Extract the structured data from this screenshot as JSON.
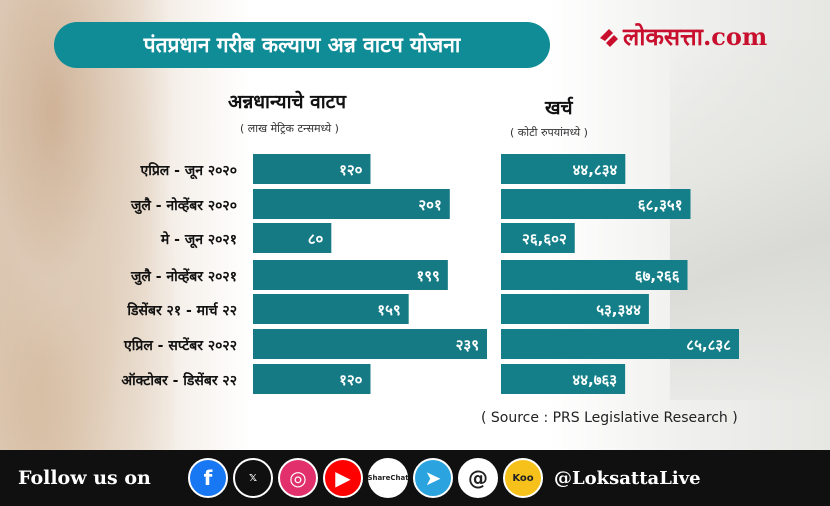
{
  "title": "पंतप्रधान गरीब कल्याण अन्न वाटप योजना",
  "brand": {
    "name": "लोकसत्ता.com",
    "accent": "#c8102e"
  },
  "colors": {
    "teal": "#0f8c96",
    "bar_left": "#157a84",
    "bar_right": "#147f88"
  },
  "chart_data": [
    {
      "type": "bar",
      "orientation": "horizontal",
      "title": "अन्नधान्याचे वाटप",
      "subtitle": "( लाख मेट्रिक टन्समध्ये )",
      "categories": [
        "एप्रिल - जून २०२०",
        "जुलै - नोव्हेंबर २०२०",
        "मे - जून २०२१",
        "जुलै - नोव्हेंबर २०२१",
        "डिसेंबर २१ - मार्च २२",
        "एप्रिल - सप्टेंबर २०२२",
        "ऑक्टोबर - डिसेंबर २२"
      ],
      "values": [
        120,
        201,
        80,
        199,
        159,
        239,
        120
      ],
      "labels": [
        "१२०",
        "२०१",
        "८०",
        "१९९",
        "१५९",
        "२३९",
        "१२०"
      ]
    },
    {
      "type": "bar",
      "orientation": "horizontal",
      "title": "खर्च",
      "subtitle": "( कोटी रुपयांमध्ये )",
      "categories": [
        "एप्रिल - जून २०२०",
        "जुलै - नोव्हेंबर २०२०",
        "मे - जून २०२१",
        "जुलै - नोव्हेंबर २०२१",
        "डिसेंबर २१ - मार्च २२",
        "एप्रिल - सप्टेंबर २०२२",
        "ऑक्टोबर - डिसेंबर २२"
      ],
      "values": [
        44834,
        68351,
        26602,
        67266,
        53344,
        85838,
        44763
      ],
      "labels": [
        "४४,८३४",
        "६८,३५१",
        "२६,६०२",
        "६७,२६६",
        "५३,३४४",
        "८५,८३८",
        "४४,७६३"
      ]
    }
  ],
  "source": "( Source : PRS Legislative Research )",
  "footer": {
    "follow_label": "Follow us on",
    "handle": "@LoksattaLive",
    "icons": [
      {
        "name": "facebook",
        "color": "#1877f2",
        "glyph": "f"
      },
      {
        "name": "x",
        "color": "#101010",
        "glyph": "𝕏"
      },
      {
        "name": "instagram",
        "color": "#e1306c",
        "glyph": "◎"
      },
      {
        "name": "youtube",
        "color": "#ff0000",
        "glyph": "▶"
      },
      {
        "name": "sharechat",
        "color": "#ffffff",
        "glyph": "ShareChat"
      },
      {
        "name": "telegram",
        "color": "#2aa3df",
        "glyph": "➤"
      },
      {
        "name": "threads",
        "color": "#ffffff",
        "glyph": "@"
      },
      {
        "name": "koo",
        "color": "#f6c11b",
        "glyph": "Koo"
      }
    ]
  }
}
